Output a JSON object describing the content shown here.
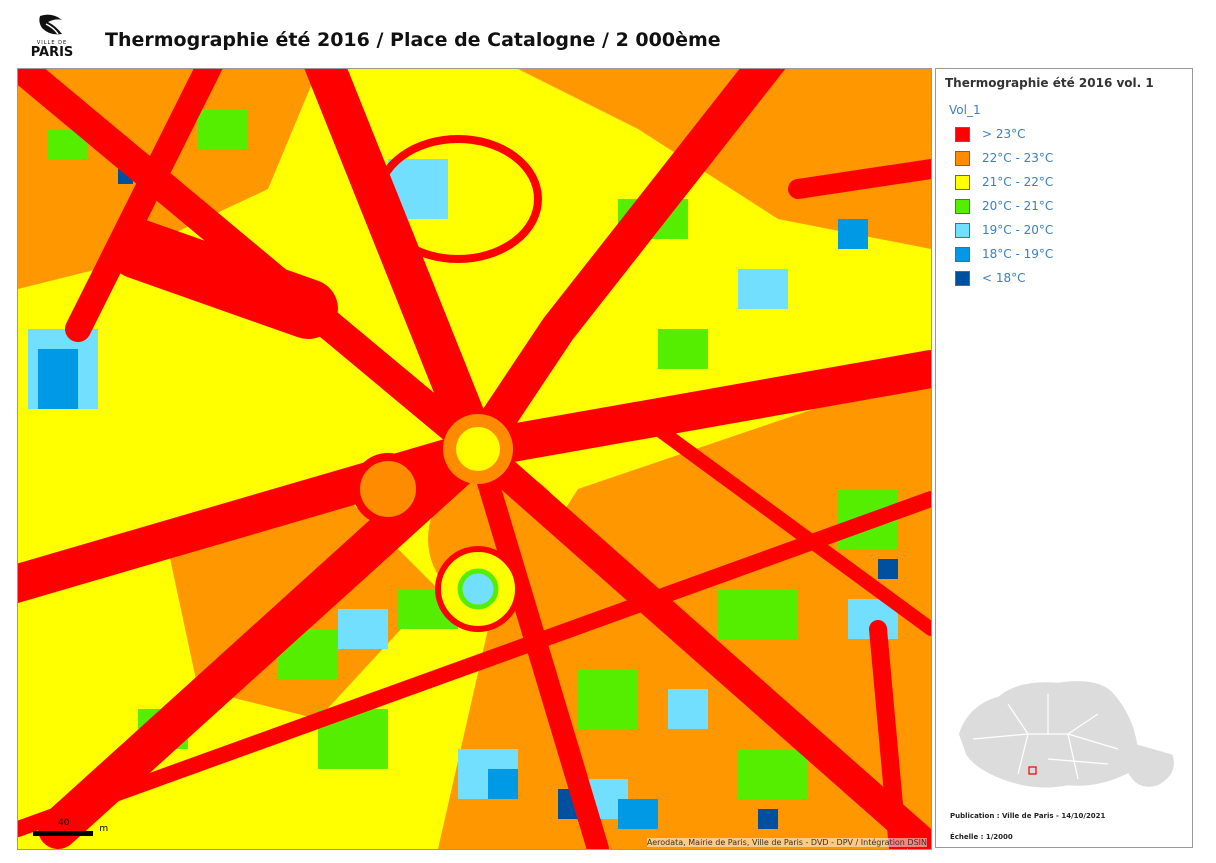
{
  "header": {
    "logo_small": "VILLE DE",
    "logo": "PARIS",
    "title": "Thermographie été 2016 / Place de Catalogne / 2 000ème"
  },
  "map": {
    "scale_label": "40",
    "scale_unit": "m",
    "attribution": "Aerodata, Mairie de Paris, Ville de Paris - DVD - DPV / Intégration DSIN"
  },
  "legend": {
    "title": "Thermographie été 2016 vol. 1",
    "layer": "Vol_1",
    "items": [
      {
        "label": "> 23°C",
        "color": "#ff0000"
      },
      {
        "label": "22°C - 23°C",
        "color": "#ff8c00"
      },
      {
        "label": "21°C - 22°C",
        "color": "#ffff00"
      },
      {
        "label": "20°C - 21°C",
        "color": "#55ee00"
      },
      {
        "label": "19°C - 20°C",
        "color": "#73dfff"
      },
      {
        "label": "18°C - 19°C",
        "color": "#0099e6"
      },
      {
        "label": "< 18°C",
        "color": "#0050a0"
      }
    ]
  },
  "footer": {
    "publication": "Publication : Ville de Paris - 14/10/2021",
    "scale": "Échelle : 1/2000"
  }
}
